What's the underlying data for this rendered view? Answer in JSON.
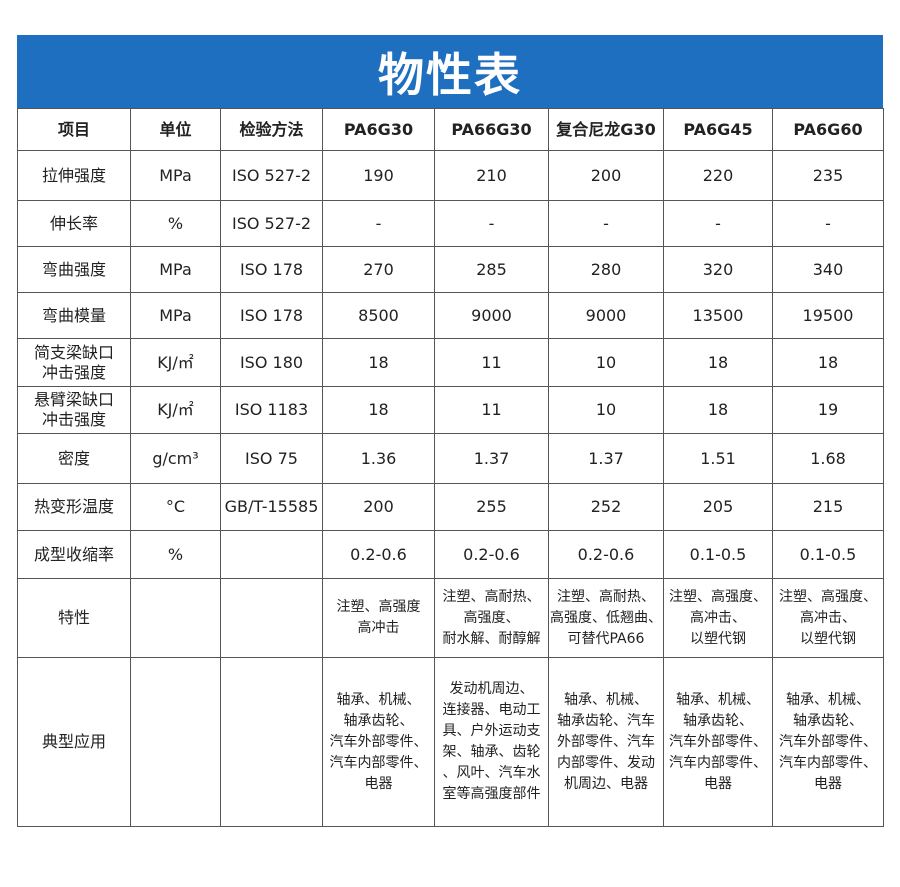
{
  "title": "物性表",
  "colors": {
    "banner": "#1f6fc0",
    "border": "#555555"
  },
  "headers": [
    "项目",
    "单位",
    "检验方法",
    "PA6G30",
    "PA66G30",
    "复合尼龙G30",
    "PA6G45",
    "PA6G60"
  ],
  "rows": [
    {
      "item": "拉伸强度",
      "unit": "MPa",
      "method": "ISO 527-2",
      "values": [
        "190",
        "210",
        "200",
        "220",
        "235"
      ]
    },
    {
      "item": "伸长率",
      "unit": "%",
      "method": "ISO 527-2",
      "values": [
        "-",
        "-",
        "-",
        "-",
        "-"
      ]
    },
    {
      "item": "弯曲强度",
      "unit": "MPa",
      "method": "ISO 178",
      "values": [
        "270",
        "285",
        "280",
        "320",
        "340"
      ]
    },
    {
      "item": "弯曲模量",
      "unit": "MPa",
      "method": "ISO 178",
      "values": [
        "8500",
        "9000",
        "9000",
        "13500",
        "19500"
      ]
    },
    {
      "item": "简支梁缺口\n冲击强度",
      "unit": "KJ/㎡",
      "method": "ISO 180",
      "values": [
        "18",
        "11",
        "10",
        "18",
        "18"
      ]
    },
    {
      "item": "悬臂梁缺口\n冲击强度",
      "unit": "KJ/㎡",
      "method": "ISO 1183",
      "values": [
        "18",
        "11",
        "10",
        "18",
        "19"
      ]
    },
    {
      "item": "密度",
      "unit": "g/cm³",
      "method": "ISO 75",
      "values": [
        "1.36",
        "1.37",
        "1.37",
        "1.51",
        "1.68"
      ]
    },
    {
      "item": "热变形温度",
      "unit": "°C",
      "method": "GB/T-15585",
      "values": [
        "200",
        "255",
        "252",
        "205",
        "215"
      ]
    },
    {
      "item": "成型收缩率",
      "unit": "%",
      "method": "",
      "values": [
        "0.2-0.6",
        "0.2-0.6",
        "0.2-0.6",
        "0.1-0.5",
        "0.1-0.5"
      ]
    },
    {
      "item": "特性",
      "unit": "",
      "method": "",
      "values": [
        "注塑、高强度\n高冲击",
        "注塑、高耐热、\n高强度、\n耐水解、耐醇解",
        "注塑、高耐热、\n高强度、低翘曲、\n可替代PA66",
        "注塑、高强度、\n高冲击、\n以塑代钢",
        "注塑、高强度、\n高冲击、\n以塑代钢"
      ]
    },
    {
      "item": "典型应用",
      "unit": "",
      "method": "",
      "values": [
        "轴承、机械、\n轴承齿轮、\n汽车外部零件、\n汽车内部零件、\n电器",
        "发动机周边、\n连接器、电动工\n具、户外运动支\n架、轴承、齿轮\n、风叶、汽车水\n室等高强度部件",
        "轴承、机械、\n轴承齿轮、汽车\n外部零件、汽车\n内部零件、发动\n机周边、电器",
        "轴承、机械、\n轴承齿轮、\n汽车外部零件、\n汽车内部零件、\n电器",
        "轴承、机械、\n轴承齿轮、\n汽车外部零件、\n汽车内部零件、\n电器"
      ]
    }
  ]
}
